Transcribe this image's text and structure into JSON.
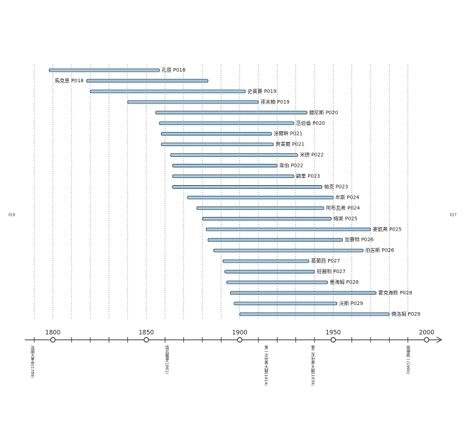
{
  "page_numbers": [
    "016",
    "017"
  ],
  "chart_data": {
    "type": "timeline",
    "xlim": [
      1785,
      2008
    ],
    "xticks": [
      1800,
      1850,
      1900,
      1950,
      2000
    ],
    "xminorticks": [
      1790,
      1800,
      1810,
      1820,
      1830,
      1840,
      1850,
      1860,
      1870,
      1880,
      1890,
      1900,
      1910,
      1920,
      1930,
      1940,
      1950,
      1960,
      1970,
      1980,
      1990
    ],
    "color": "#a8cde6",
    "rows": [
      {
        "label": "孔德 P018",
        "start": 1798,
        "end": 1857
      },
      {
        "label": "馬克思 P018",
        "start": 1818,
        "end": 1883,
        "label_side": "left"
      },
      {
        "label": "史賓賽 P019",
        "start": 1820,
        "end": 1903
      },
      {
        "label": "孫末楠 P019",
        "start": 1840,
        "end": 1910
      },
      {
        "label": "滕尼斯 P020",
        "start": 1855,
        "end": 1936
      },
      {
        "label": "范伯倫 P020",
        "start": 1857,
        "end": 1929
      },
      {
        "label": "涂爾幹 P021",
        "start": 1858,
        "end": 1917
      },
      {
        "label": "齊美爾 P021",
        "start": 1858,
        "end": 1918
      },
      {
        "label": "米德 P022",
        "start": 1863,
        "end": 1931
      },
      {
        "label": "韋伯 P022",
        "start": 1864,
        "end": 1920
      },
      {
        "label": "顧里 P023",
        "start": 1864,
        "end": 1929
      },
      {
        "label": "帕克 P023",
        "start": 1864,
        "end": 1944
      },
      {
        "label": "牟斯 P024",
        "start": 1872,
        "end": 1950
      },
      {
        "label": "阿布瓦希 P024",
        "start": 1877,
        "end": 1945
      },
      {
        "label": "梅奧 P025",
        "start": 1880,
        "end": 1949
      },
      {
        "label": "麥凱弗 P025",
        "start": 1882,
        "end": 1970
      },
      {
        "label": "加賽特 P026",
        "start": 1883,
        "end": 1955
      },
      {
        "label": "伯吉斯 P026",
        "start": 1886,
        "end": 1966
      },
      {
        "label": "葛蘭西 P027",
        "start": 1891,
        "end": 1937
      },
      {
        "label": "班雅明 P027",
        "start": 1892,
        "end": 1940
      },
      {
        "label": "曼海姆 P028",
        "start": 1893,
        "end": 1947
      },
      {
        "label": "霍克海默 P028",
        "start": 1895,
        "end": 1973
      },
      {
        "label": "沃斯 P029",
        "start": 1897,
        "end": 1952
      },
      {
        "label": "佛洛姆 P029",
        "start": 1900,
        "end": 1980
      }
    ],
    "events": [
      {
        "label": "法國大革命(1789)",
        "x": 1789
      },
      {
        "label": "南北戰爭(1861)",
        "x": 1861
      },
      {
        "label": "第一次世界大戰(1914)",
        "x": 1914
      },
      {
        "label": "第二次世界大戰(1939)",
        "x": 1939
      },
      {
        "label": "兩德統一(1990)",
        "x": 1990
      }
    ]
  }
}
